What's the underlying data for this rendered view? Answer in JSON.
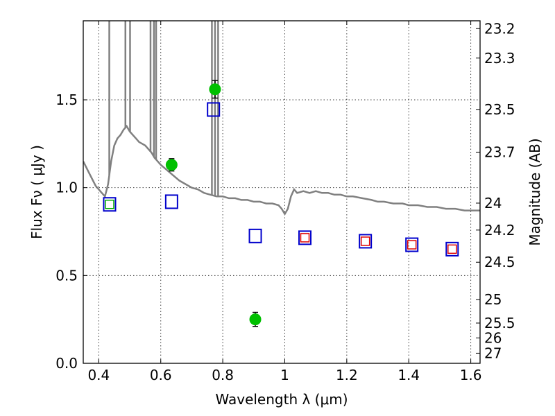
{
  "chart_data": {
    "type": "scatter",
    "title": "",
    "xlabel": "Wavelength  λ (μm)",
    "ylabel": "Flux  Fν  ( μJy )",
    "ylabel_right": "Magnitude (AB)",
    "xlim": [
      0.35,
      1.63
    ],
    "ylim": [
      0.0,
      1.95
    ],
    "x_ticks": [
      0.4,
      0.6,
      0.8,
      1.0,
      1.2,
      1.4,
      1.6
    ],
    "x_tick_labels": [
      "0.4",
      "0.6",
      "0.8",
      "1",
      "1.2",
      "1.4",
      "1.6"
    ],
    "y_ticks": [
      0.0,
      0.5,
      1.0,
      1.5
    ],
    "y_tick_labels": [
      "0.0",
      "0.5",
      "1.0",
      "1.5"
    ],
    "right_ticks": [
      {
        "mag": 23.2,
        "label": "23.2"
      },
      {
        "mag": 23.3,
        "label": "23.3"
      },
      {
        "mag": 23.5,
        "label": "23.5"
      },
      {
        "mag": 23.7,
        "label": "23.7"
      },
      {
        "mag": 24.0,
        "label": "24"
      },
      {
        "mag": 24.2,
        "label": "24.2"
      },
      {
        "mag": 24.5,
        "label": "24.5"
      },
      {
        "mag": 25.0,
        "label": "25"
      },
      {
        "mag": 25.5,
        "label": "25.5"
      },
      {
        "mag": 26.0,
        "label": "26"
      },
      {
        "mag": 27.0,
        "label": "27"
      }
    ],
    "grid": true,
    "colors": {
      "spectrum": "#808080",
      "observed": "#00c000",
      "model_blue": "#0000cc",
      "model_red": "#dd0000",
      "model_green": "#00aa00"
    },
    "series": [
      {
        "kind": "spectrum",
        "points": [
          [
            0.35,
            1.15
          ],
          [
            0.37,
            1.08
          ],
          [
            0.39,
            1.01
          ],
          [
            0.41,
            0.97
          ],
          [
            0.42,
            0.95
          ],
          [
            0.43,
            1.02
          ],
          [
            0.44,
            1.15
          ],
          [
            0.45,
            1.24
          ],
          [
            0.46,
            1.28
          ],
          [
            0.47,
            1.3
          ],
          [
            0.48,
            1.33
          ],
          [
            0.49,
            1.35
          ],
          [
            0.5,
            1.32
          ],
          [
            0.51,
            1.3
          ],
          [
            0.52,
            1.28
          ],
          [
            0.53,
            1.26
          ],
          [
            0.54,
            1.25
          ],
          [
            0.55,
            1.24
          ],
          [
            0.56,
            1.22
          ],
          [
            0.57,
            1.2
          ],
          [
            0.58,
            1.17
          ],
          [
            0.59,
            1.15
          ],
          [
            0.6,
            1.13
          ],
          [
            0.62,
            1.1
          ],
          [
            0.64,
            1.07
          ],
          [
            0.66,
            1.04
          ],
          [
            0.68,
            1.02
          ],
          [
            0.7,
            1.0
          ],
          [
            0.72,
            0.99
          ],
          [
            0.74,
            0.97
          ],
          [
            0.76,
            0.96
          ],
          [
            0.78,
            0.95
          ],
          [
            0.8,
            0.95
          ],
          [
            0.82,
            0.94
          ],
          [
            0.84,
            0.94
          ],
          [
            0.86,
            0.93
          ],
          [
            0.88,
            0.93
          ],
          [
            0.9,
            0.92
          ],
          [
            0.92,
            0.92
          ],
          [
            0.94,
            0.91
          ],
          [
            0.96,
            0.91
          ],
          [
            0.98,
            0.9
          ],
          [
            0.99,
            0.88
          ],
          [
            1.0,
            0.85
          ],
          [
            1.01,
            0.88
          ],
          [
            1.02,
            0.95
          ],
          [
            1.03,
            0.99
          ],
          [
            1.04,
            0.97
          ],
          [
            1.06,
            0.98
          ],
          [
            1.08,
            0.97
          ],
          [
            1.1,
            0.98
          ],
          [
            1.12,
            0.97
          ],
          [
            1.14,
            0.97
          ],
          [
            1.16,
            0.96
          ],
          [
            1.18,
            0.96
          ],
          [
            1.2,
            0.95
          ],
          [
            1.22,
            0.95
          ],
          [
            1.25,
            0.94
          ],
          [
            1.28,
            0.93
          ],
          [
            1.3,
            0.92
          ],
          [
            1.32,
            0.92
          ],
          [
            1.35,
            0.91
          ],
          [
            1.38,
            0.91
          ],
          [
            1.4,
            0.9
          ],
          [
            1.43,
            0.9
          ],
          [
            1.46,
            0.89
          ],
          [
            1.49,
            0.89
          ],
          [
            1.52,
            0.88
          ],
          [
            1.55,
            0.88
          ],
          [
            1.58,
            0.87
          ],
          [
            1.6,
            0.87
          ],
          [
            1.63,
            0.87
          ]
        ],
        "emission_lines": [
          {
            "x": 0.434,
            "top": 1.95
          },
          {
            "x": 0.486,
            "top": 1.95
          },
          {
            "x": 0.501,
            "top": 1.95
          },
          {
            "x": 0.567,
            "top": 1.95
          },
          {
            "x": 0.578,
            "top": 1.95
          },
          {
            "x": 0.585,
            "top": 1.95
          },
          {
            "x": 0.765,
            "top": 1.95
          },
          {
            "x": 0.775,
            "top": 1.95
          },
          {
            "x": 0.785,
            "top": 1.95
          }
        ]
      },
      {
        "kind": "observed",
        "points": [
          {
            "x": 0.635,
            "y": 1.13,
            "err": 0.035
          },
          {
            "x": 0.775,
            "y": 1.56,
            "err": 0.05
          },
          {
            "x": 0.905,
            "y": 0.25,
            "err": 0.04
          }
        ]
      },
      {
        "kind": "model",
        "points": [
          {
            "x": 0.435,
            "y": 0.905,
            "inner": "green"
          },
          {
            "x": 0.635,
            "y": 0.92,
            "inner": "none"
          },
          {
            "x": 0.77,
            "y": 1.445,
            "inner": "none"
          },
          {
            "x": 0.905,
            "y": 0.725,
            "inner": "none"
          },
          {
            "x": 1.065,
            "y": 0.715,
            "inner": "red"
          },
          {
            "x": 1.26,
            "y": 0.695,
            "inner": "red"
          },
          {
            "x": 1.41,
            "y": 0.675,
            "inner": "red"
          },
          {
            "x": 1.54,
            "y": 0.65,
            "inner": "red"
          }
        ]
      }
    ]
  }
}
